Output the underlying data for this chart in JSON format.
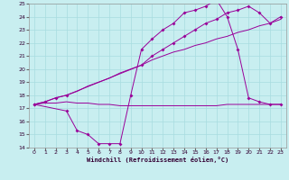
{
  "xlabel": "Windchill (Refroidissement éolien,°C)",
  "background_color": "#c8eef0",
  "grid_color": "#a8dce0",
  "line_color": "#990099",
  "xlim": [
    -0.5,
    23.5
  ],
  "ylim": [
    14,
    25
  ],
  "xticks": [
    0,
    1,
    2,
    3,
    4,
    5,
    6,
    7,
    8,
    9,
    10,
    11,
    12,
    13,
    14,
    15,
    16,
    17,
    18,
    19,
    20,
    21,
    22,
    23
  ],
  "yticks": [
    14,
    15,
    16,
    17,
    18,
    19,
    20,
    21,
    22,
    23,
    24,
    25
  ],
  "curve_flat_x": [
    0,
    1,
    2,
    3,
    4,
    5,
    6,
    7,
    8,
    9,
    10,
    11,
    12,
    13,
    14,
    15,
    16,
    17,
    18,
    19,
    20,
    21,
    22,
    23
  ],
  "curve_flat_y": [
    17.3,
    17.4,
    17.4,
    17.5,
    17.4,
    17.4,
    17.3,
    17.3,
    17.2,
    17.2,
    17.2,
    17.2,
    17.2,
    17.2,
    17.2,
    17.2,
    17.2,
    17.2,
    17.3,
    17.3,
    17.3,
    17.3,
    17.3,
    17.3
  ],
  "curve_dip_x": [
    0,
    3,
    4,
    5,
    6,
    7,
    8,
    9,
    10,
    11,
    12,
    13,
    14,
    15,
    16,
    17,
    18,
    19,
    20,
    21,
    22,
    23
  ],
  "curve_dip_y": [
    17.3,
    16.8,
    15.3,
    15.0,
    14.3,
    14.3,
    14.3,
    18.0,
    21.5,
    22.3,
    23.0,
    23.5,
    24.3,
    24.5,
    24.8,
    25.3,
    24.0,
    21.5,
    17.8,
    17.5,
    17.3,
    17.3
  ],
  "curve_grad1_x": [
    0,
    1,
    2,
    3,
    10,
    11,
    12,
    13,
    14,
    15,
    16,
    17,
    18,
    19,
    20,
    21,
    22,
    23
  ],
  "curve_grad1_y": [
    17.3,
    17.5,
    17.8,
    18.0,
    20.3,
    21.0,
    21.5,
    22.0,
    22.5,
    23.0,
    23.5,
    23.8,
    24.3,
    24.5,
    24.8,
    24.3,
    23.5,
    24.0
  ],
  "curve_grad2_x": [
    0,
    1,
    2,
    3,
    4,
    5,
    6,
    7,
    8,
    9,
    10,
    11,
    12,
    13,
    14,
    15,
    16,
    17,
    18,
    19,
    20,
    21,
    22,
    23
  ],
  "curve_grad2_y": [
    17.3,
    17.5,
    17.8,
    18.0,
    18.3,
    18.7,
    19.0,
    19.3,
    19.7,
    20.0,
    20.3,
    20.7,
    21.0,
    21.3,
    21.5,
    21.8,
    22.0,
    22.3,
    22.5,
    22.8,
    23.0,
    23.3,
    23.5,
    23.8
  ]
}
